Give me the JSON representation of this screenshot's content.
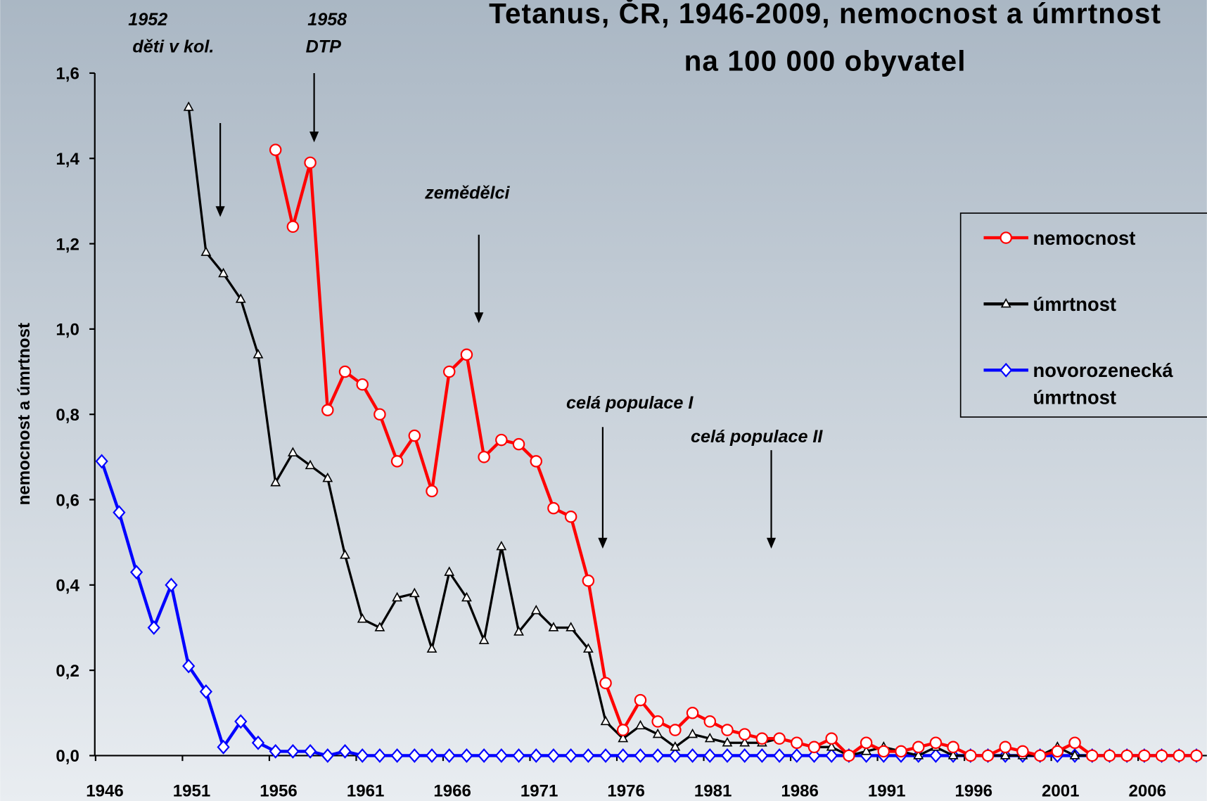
{
  "chart_data": {
    "type": "line",
    "title": [
      "Tetanus, ČR, 1946-2009, nemocnost a úmrtnost",
      "na 100 000 obyvatel"
    ],
    "ylabel": "nemocnost a úmrtnost",
    "annotations": [
      [
        "1952",
        "děti v kol."
      ],
      [
        "1958",
        "DTP"
      ],
      [
        "zemědělci"
      ],
      [
        "celá populace I"
      ],
      [
        "celá populace II"
      ]
    ],
    "x": [
      1946,
      1947,
      1948,
      1949,
      1950,
      1951,
      1952,
      1953,
      1954,
      1955,
      1956,
      1957,
      1958,
      1959,
      1960,
      1961,
      1962,
      1963,
      1964,
      1965,
      1966,
      1967,
      1968,
      1969,
      1970,
      1971,
      1972,
      1973,
      1974,
      1975,
      1976,
      1977,
      1978,
      1979,
      1980,
      1981,
      1982,
      1983,
      1984,
      1985,
      1986,
      1987,
      1988,
      1989,
      1990,
      1991,
      1992,
      1993,
      1994,
      1995,
      1996,
      1997,
      1998,
      1999,
      2000,
      2001,
      2002,
      2003,
      2004,
      2005,
      2006,
      2007,
      2008,
      2009
    ],
    "xlim": [
      1945.6,
      2009.6
    ],
    "xticks": [
      1946,
      1951,
      1956,
      1961,
      1966,
      1971,
      1976,
      1981,
      1986,
      1991,
      1996,
      2001,
      2006
    ],
    "ylim": [
      0,
      1.6
    ],
    "yticks": [
      {
        "value": 0,
        "label": "0,0"
      },
      {
        "value": 0.2,
        "label": "0,2"
      },
      {
        "value": 0.4,
        "label": "0,4"
      },
      {
        "value": 0.6,
        "label": "0,6"
      },
      {
        "value": 0.8,
        "label": "0,8"
      },
      {
        "value": 1.0,
        "label": "1,0"
      },
      {
        "value": 1.2,
        "label": "1,2"
      },
      {
        "value": 1.4,
        "label": "1,4"
      },
      {
        "value": 1.6,
        "label": "1,6"
      }
    ],
    "legend": "right",
    "series": [
      {
        "name": "nemocnost",
        "color": "#ff0000",
        "marker": "circle",
        "values": [
          null,
          null,
          null,
          null,
          null,
          null,
          null,
          null,
          null,
          null,
          1.42,
          1.24,
          1.39,
          0.81,
          0.9,
          0.87,
          0.8,
          0.69,
          0.75,
          0.62,
          0.9,
          0.94,
          0.7,
          0.74,
          0.73,
          0.69,
          0.58,
          0.56,
          0.41,
          0.17,
          0.06,
          0.13,
          0.08,
          0.06,
          0.1,
          0.08,
          0.06,
          0.05,
          0.04,
          0.04,
          0.03,
          0.02,
          0.04,
          0,
          0.03,
          0.01,
          0.01,
          0.02,
          0.03,
          0.02,
          0,
          0,
          0.02,
          0.01,
          0,
          0.01,
          0.03,
          0,
          0,
          0,
          0,
          0,
          0,
          0
        ]
      },
      {
        "name": "úmrtnost",
        "color": "#000000",
        "marker": "triangle",
        "values": [
          null,
          null,
          null,
          null,
          null,
          1.52,
          1.18,
          1.13,
          1.07,
          0.94,
          0.64,
          0.71,
          0.68,
          0.65,
          0.47,
          0.32,
          0.3,
          0.37,
          0.38,
          0.25,
          0.43,
          0.37,
          0.27,
          0.49,
          0.29,
          0.34,
          0.3,
          0.3,
          0.25,
          0.08,
          0.04,
          0.07,
          0.05,
          0.02,
          0.05,
          0.04,
          0.03,
          0.03,
          0.03,
          0.04,
          0.03,
          0.02,
          0.02,
          0,
          0.01,
          0.02,
          0.01,
          0,
          0.02,
          0,
          0,
          0,
          0,
          0,
          0,
          0.02,
          0,
          0,
          0,
          0,
          0,
          0,
          0,
          0
        ]
      },
      {
        "name": "novorozenecká úmrtnost",
        "color": "#0000ff",
        "marker": "diamond",
        "values": [
          0.69,
          0.57,
          0.43,
          0.3,
          0.4,
          0.21,
          0.15,
          0.02,
          0.08,
          0.03,
          0.01,
          0.01,
          0.01,
          0,
          0.01,
          0,
          0,
          0,
          0,
          0,
          0,
          0,
          0,
          0,
          0,
          0,
          0,
          0,
          0,
          0,
          0,
          0,
          0,
          0,
          0,
          0,
          0,
          0,
          0,
          0,
          0,
          0,
          0,
          0,
          0,
          0,
          0,
          0,
          0,
          0,
          0,
          0,
          0,
          0,
          0,
          0,
          0,
          0,
          0,
          0,
          0,
          0,
          0,
          0
        ]
      }
    ]
  }
}
